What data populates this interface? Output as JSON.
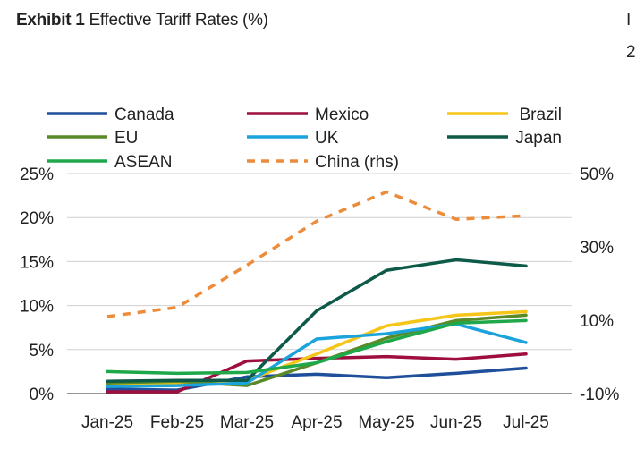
{
  "header": {
    "exhibit": "Exhibit 1",
    "title": "Effective Tariff Rates (%)",
    "cut_off_right_top": "I",
    "cut_off_right_bottom": "2"
  },
  "chart_data": {
    "type": "line",
    "title": "Effective Tariff Rates (%)",
    "xlabel": "",
    "ylabel": "",
    "categories": [
      "Jan-25",
      "Feb-25",
      "Mar-25",
      "Apr-25",
      "May-25",
      "Jun-25",
      "Jul-25"
    ],
    "y_left": {
      "ticks": [
        "25%",
        "20%",
        "15%",
        "10%",
        "5%",
        "0%"
      ],
      "ylim": [
        0,
        25
      ]
    },
    "y_right": {
      "ticks": [
        "50%",
        "30%",
        "10%",
        "-10%"
      ],
      "ylim": [
        -10,
        50
      ]
    },
    "grid": "horizontal",
    "legend_position": "top",
    "series": [
      {
        "name": "Canada",
        "axis": "left",
        "color": "#1f4e9a",
        "dashed": false,
        "values": [
          0.5,
          0.4,
          1.9,
          2.2,
          1.8,
          2.3,
          2.9
        ]
      },
      {
        "name": "Mexico",
        "axis": "left",
        "color": "#9e0e3e",
        "dashed": false,
        "values": [
          0.2,
          0.2,
          3.7,
          4.0,
          4.2,
          3.9,
          4.5
        ]
      },
      {
        "name": "Brazil",
        "axis": "left",
        "color": "#f5c518",
        "dashed": false,
        "values": [
          1.0,
          1.2,
          1.5,
          4.5,
          7.7,
          8.9,
          9.3
        ]
      },
      {
        "name": "EU",
        "axis": "left",
        "color": "#5a8a28",
        "dashed": false,
        "values": [
          1.2,
          1.4,
          0.9,
          3.5,
          6.3,
          8.3,
          8.9
        ]
      },
      {
        "name": "UK",
        "axis": "left",
        "color": "#1ba3dc",
        "dashed": false,
        "values": [
          0.8,
          0.9,
          1.2,
          6.2,
          6.8,
          7.9,
          5.8
        ]
      },
      {
        "name": "Japan",
        "axis": "left",
        "color": "#0d5a48",
        "dashed": false,
        "values": [
          1.4,
          1.5,
          1.5,
          9.4,
          14.0,
          15.2,
          14.5
        ]
      },
      {
        "name": "ASEAN",
        "axis": "left",
        "color": "#1fa84a",
        "dashed": false,
        "values": [
          2.5,
          2.3,
          2.4,
          3.5,
          5.9,
          8.0,
          8.3
        ]
      },
      {
        "name": "China (rhs)",
        "axis": "right",
        "color": "#ec8c3a",
        "dashed": true,
        "values": [
          11.0,
          13.5,
          25.0,
          37.0,
          45.0,
          37.5,
          38.5
        ]
      }
    ]
  }
}
